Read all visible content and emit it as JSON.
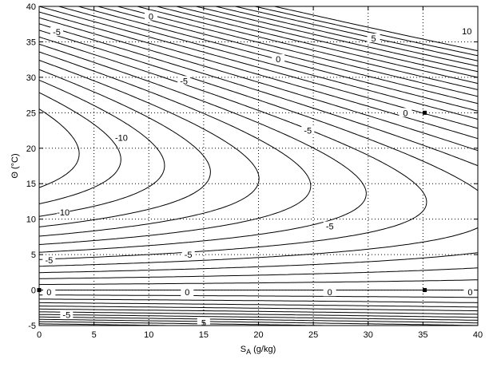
{
  "chart_data": {
    "type": "contour",
    "xlabel": "S",
    "xlabel_sub": "A",
    "xlabel_unit": " (g/kg)",
    "ylabel": "Θ (°C)",
    "xlim": [
      0,
      40
    ],
    "ylim": [
      -5,
      40
    ],
    "xticks": [
      0,
      5,
      10,
      15,
      20,
      25,
      30,
      35,
      40
    ],
    "yticks": [
      -5,
      0,
      5,
      10,
      15,
      20,
      25,
      30,
      35,
      40
    ],
    "grid": true,
    "contour_levels": {
      "min": -13,
      "max": 12,
      "step": 1
    },
    "contour_labels": [
      {
        "text": "0",
        "x": 10.2,
        "y": 38.6
      },
      {
        "text": "-5",
        "x": 1.6,
        "y": 36.4
      },
      {
        "text": "10",
        "x": 39.0,
        "y": 36.5
      },
      {
        "text": "5",
        "x": 30.5,
        "y": 35.5
      },
      {
        "text": "0",
        "x": 21.8,
        "y": 32.6
      },
      {
        "text": "-5",
        "x": 13.2,
        "y": 29.5
      },
      {
        "text": "-10",
        "x": 7.5,
        "y": 21.5
      },
      {
        "text": "0",
        "x": 33.4,
        "y": 25.0
      },
      {
        "text": "-5",
        "x": 24.5,
        "y": 22.5
      },
      {
        "text": "-10",
        "x": 2.2,
        "y": 11.0
      },
      {
        "text": "-5",
        "x": 26.5,
        "y": 9.0
      },
      {
        "text": "-5",
        "x": 13.6,
        "y": 5.0
      },
      {
        "text": "-5",
        "x": 0.9,
        "y": 4.2
      },
      {
        "text": "0",
        "x": 0.9,
        "y": -0.3
      },
      {
        "text": "0",
        "x": 13.5,
        "y": -0.3
      },
      {
        "text": "0",
        "x": 26.5,
        "y": -0.3
      },
      {
        "text": "0",
        "x": 39.3,
        "y": -0.3
      },
      {
        "text": "-5",
        "x": 2.5,
        "y": -3.5
      },
      {
        "text": "5",
        "x": 15.0,
        "y": -4.6
      }
    ],
    "points": [
      {
        "x": 0,
        "y": 0
      },
      {
        "x": 35.16,
        "y": 0
      },
      {
        "x": 35.16,
        "y": 25
      }
    ],
    "colors": {
      "line": "#000000",
      "grid": "#000000",
      "background": "#ffffff"
    }
  }
}
